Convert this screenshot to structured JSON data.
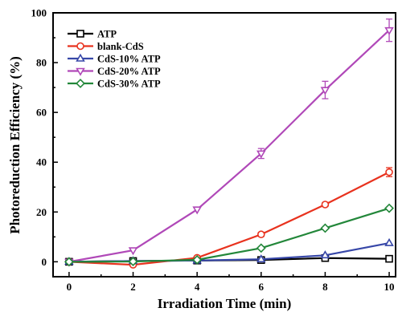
{
  "chart_data": {
    "type": "line",
    "xlabel": "Irradiation Time (min)",
    "ylabel": "Photoreduction Efficiency (%)",
    "xlim": [
      -0.5,
      10.2
    ],
    "ylim": [
      -6,
      100
    ],
    "xticks": [
      0,
      2,
      4,
      6,
      8,
      10
    ],
    "yticks": [
      0,
      20,
      40,
      60,
      80,
      100
    ],
    "x": [
      0,
      2,
      4,
      6,
      8,
      10
    ],
    "legend_position": "top-left",
    "grid": false,
    "series": [
      {
        "name": "ATP",
        "color": "#000000",
        "marker": "square",
        "values": [
          0,
          0.3,
          0.5,
          0.7,
          1.5,
          1.2
        ],
        "errors": [
          0,
          0,
          0,
          0,
          0,
          0
        ]
      },
      {
        "name": "blank-CdS",
        "color": "#e8321e",
        "marker": "circle",
        "values": [
          0,
          -1.2,
          1.6,
          11.0,
          23.0,
          36.0
        ],
        "errors": [
          0,
          0,
          0,
          0.8,
          0.8,
          1.8
        ]
      },
      {
        "name": "CdS-10% ATP",
        "color": "#3747a8",
        "marker": "triangle-up",
        "values": [
          0,
          0.3,
          0.5,
          1.0,
          2.6,
          7.5
        ],
        "errors": [
          0,
          0,
          0,
          0,
          0,
          0
        ]
      },
      {
        "name": "CdS-20% ATP",
        "color": "#b048b8",
        "marker": "triangle-down",
        "values": [
          0,
          4.6,
          21.0,
          43.5,
          69.0,
          93.0
        ],
        "errors": [
          0,
          0,
          0,
          2.0,
          3.5,
          4.5
        ]
      },
      {
        "name": "CdS-30% ATP",
        "color": "#23873a",
        "marker": "diamond",
        "values": [
          0,
          0.1,
          0.8,
          5.5,
          13.5,
          21.5
        ],
        "errors": [
          0,
          0,
          0,
          0,
          0,
          0
        ]
      }
    ]
  }
}
